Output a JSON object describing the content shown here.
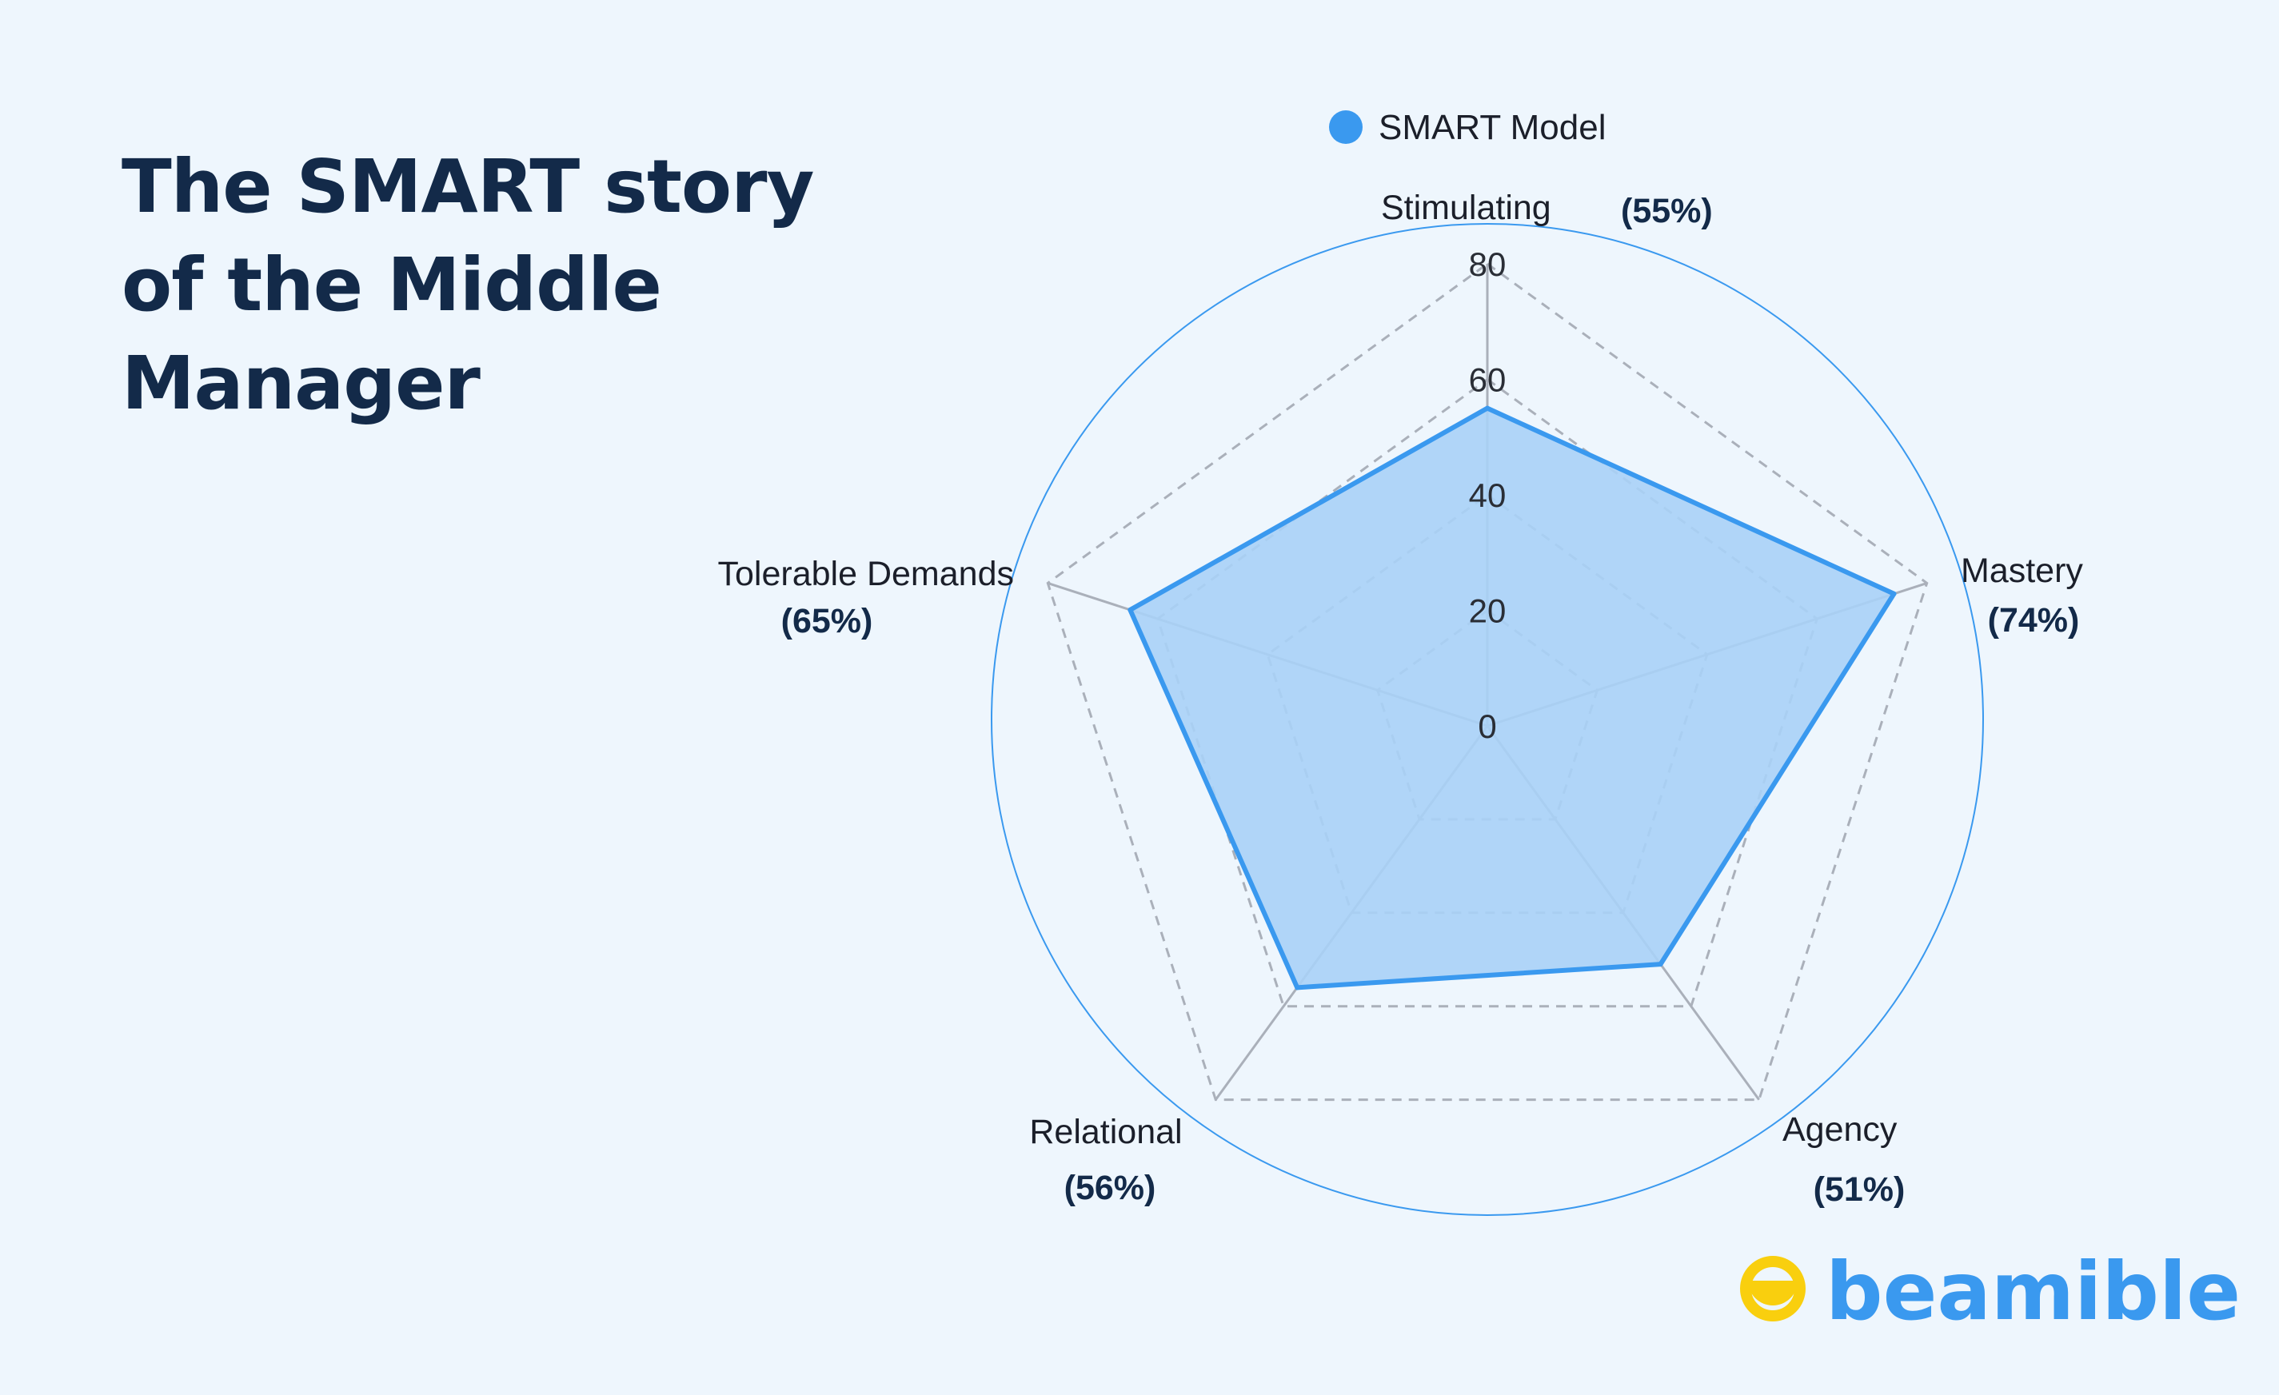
{
  "title_lines": [
    "The SMART story",
    "of the Middle",
    "Manager"
  ],
  "brand": {
    "name": "beamible",
    "logo_icon": "smile-face-icon",
    "text_color": "#3A99EF",
    "logo_color": "#F9CF0E"
  },
  "colors": {
    "background": "#EEF6FD",
    "title": "#132A49",
    "series_fill": "#A9D1F7",
    "series_stroke": "#3A99EF",
    "outer_circle": "#3A99EF",
    "grid": "#AAB0BA"
  },
  "chart_data": {
    "type": "radar",
    "title": "The SMART story of the Middle Manager",
    "legend": {
      "position": "top",
      "entries": [
        "SMART Model"
      ]
    },
    "axes": [
      {
        "name": "Stimulating",
        "pct_label": "(55%)"
      },
      {
        "name": "Mastery",
        "pct_label": "(74%)"
      },
      {
        "name": "Agency",
        "pct_label": "(51%)"
      },
      {
        "name": "Relational",
        "pct_label": "(56%)"
      },
      {
        "name": "Tolerable Demands",
        "pct_label": "(65%)"
      }
    ],
    "radial_ticks": [
      "0",
      "20",
      "40",
      "60",
      "80"
    ],
    "rlim": [
      0,
      80
    ],
    "grid": true,
    "series": [
      {
        "name": "SMART Model",
        "values": [
          55,
          74,
          51,
          56,
          65
        ],
        "color": "#3A99EF"
      }
    ]
  }
}
